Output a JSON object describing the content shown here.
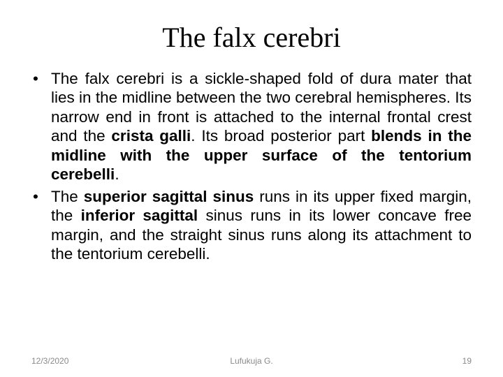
{
  "title": "The falx cerebri",
  "bullets": [
    {
      "marker": "•",
      "segments": [
        {
          "text": "The falx cerebri is a sickle-shaped fold of dura mater that lies in the midline between the two cerebral hemispheres. Its narrow end in front is attached to the internal frontal crest and the ",
          "bold": false
        },
        {
          "text": "crista galli",
          "bold": true
        },
        {
          "text": ". Its broad posterior part ",
          "bold": false
        },
        {
          "text": "blends in the midline with the upper surface of the tentorium cerebelli",
          "bold": true
        },
        {
          "text": ".",
          "bold": false
        }
      ]
    },
    {
      "marker": "•",
      "segments": [
        {
          "text": "The ",
          "bold": false
        },
        {
          "text": "superior sagittal sinus",
          "bold": true
        },
        {
          "text": " runs in its upper fixed margin, the ",
          "bold": false
        },
        {
          "text": "inferior sagittal",
          "bold": true
        },
        {
          "text": " sinus runs in its lower concave free margin, and the straight sinus runs along its attachment to the tentorium cerebelli.",
          "bold": false
        }
      ]
    }
  ],
  "footer": {
    "date": "12/3/2020",
    "author": "Lufukuja G.",
    "page": "19"
  },
  "colors": {
    "text": "#000000",
    "footer": "#8a8a8a",
    "background": "#ffffff"
  }
}
